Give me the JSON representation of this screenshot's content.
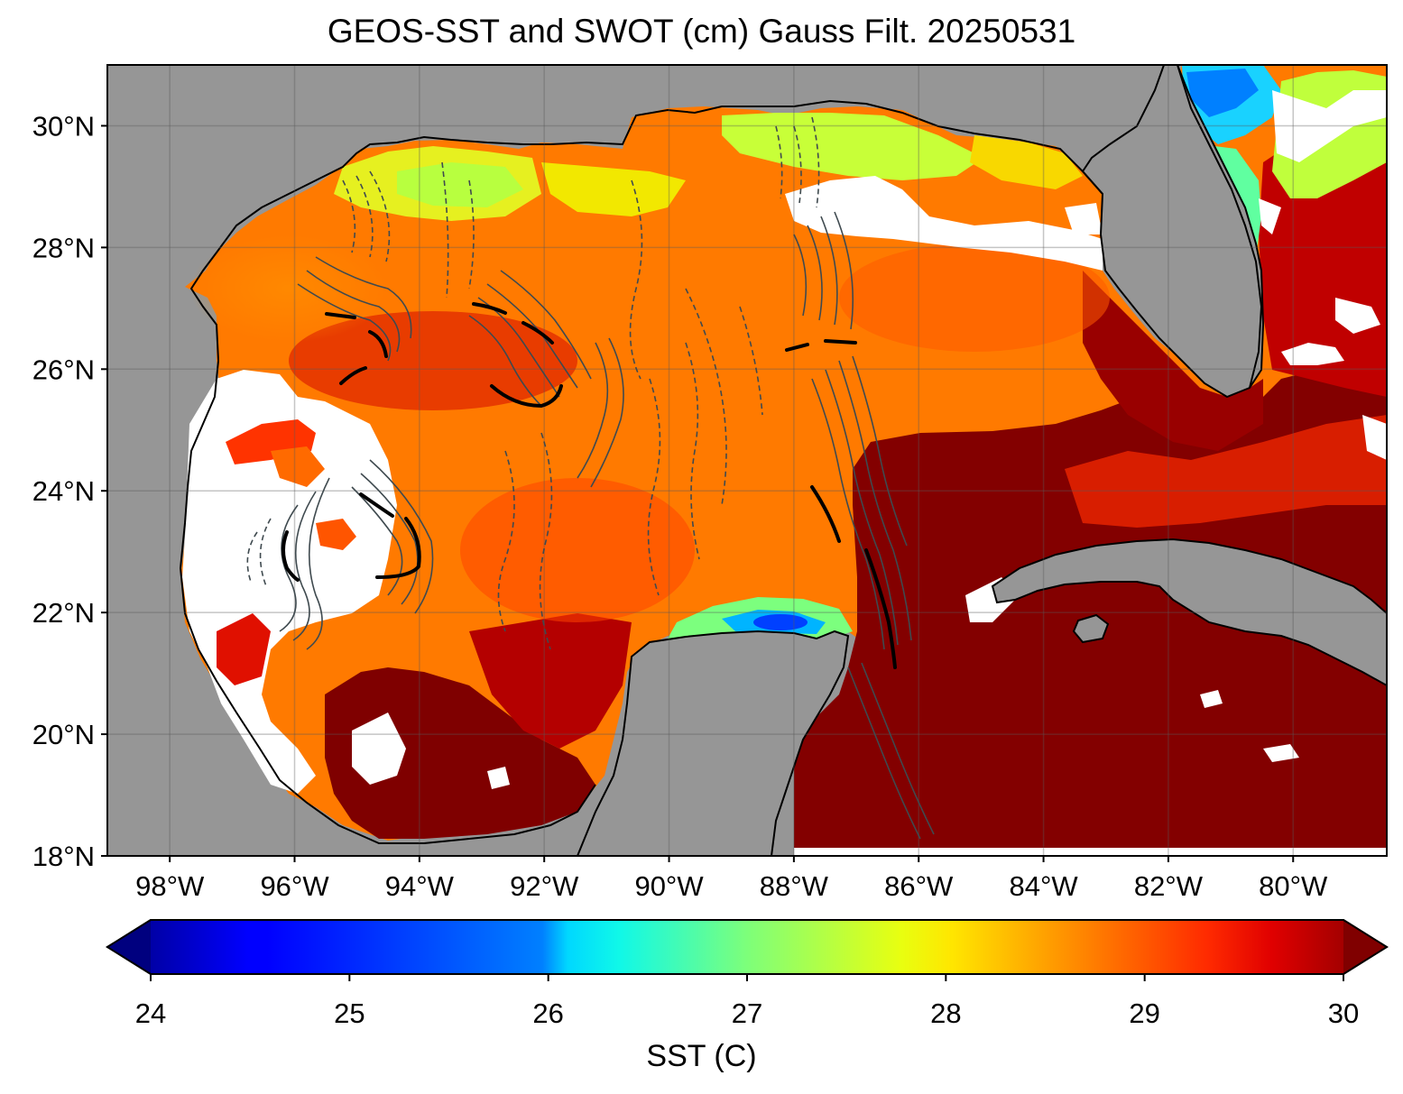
{
  "title": "GEOS-SST  and SWOT (cm) Gauss Filt. 20250531",
  "map": {
    "lon_range": [
      -99,
      -78.5
    ],
    "lat_range": [
      18,
      31
    ],
    "lat_ticks": [
      {
        "value": 30,
        "label": "30°N"
      },
      {
        "value": 28,
        "label": "28°N"
      },
      {
        "value": 26,
        "label": "26°N"
      },
      {
        "value": 24,
        "label": "24°N"
      },
      {
        "value": 22,
        "label": "22°N"
      },
      {
        "value": 20,
        "label": "20°N"
      },
      {
        "value": 18,
        "label": "18°N"
      }
    ],
    "lon_ticks": [
      {
        "value": -98,
        "label": "98°W"
      },
      {
        "value": -96,
        "label": "96°W"
      },
      {
        "value": -94,
        "label": "94°W"
      },
      {
        "value": -92,
        "label": "92°W"
      },
      {
        "value": -90,
        "label": "90°W"
      },
      {
        "value": -88,
        "label": "88°W"
      },
      {
        "value": -86,
        "label": "86°W"
      },
      {
        "value": -84,
        "label": "84°W"
      },
      {
        "value": -82,
        "label": "82°W"
      },
      {
        "value": -80,
        "label": "80°W"
      }
    ],
    "land_color": "#969696",
    "missing_color": "#ffffff",
    "contour_color": "#3f4a4f"
  },
  "colorbar": {
    "label": "SST (C)",
    "vmin": 24,
    "vmax": 30,
    "colormap": "jet",
    "extend": "both",
    "ticks": [
      {
        "value": 24,
        "label": "24"
      },
      {
        "value": 25,
        "label": "25"
      },
      {
        "value": 26,
        "label": "26"
      },
      {
        "value": 27,
        "label": "27"
      },
      {
        "value": 28,
        "label": "28"
      },
      {
        "value": 29,
        "label": "29"
      },
      {
        "value": 30,
        "label": "30"
      }
    ]
  }
}
